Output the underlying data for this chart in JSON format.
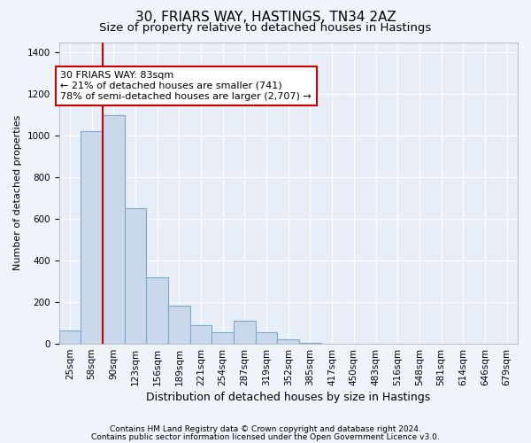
{
  "title1": "30, FRIARS WAY, HASTINGS, TN34 2AZ",
  "title2": "Size of property relative to detached houses in Hastings",
  "xlabel": "Distribution of detached houses by size in Hastings",
  "ylabel": "Number of detached properties",
  "bin_labels": [
    "25sqm",
    "58sqm",
    "90sqm",
    "123sqm",
    "156sqm",
    "189sqm",
    "221sqm",
    "254sqm",
    "287sqm",
    "319sqm",
    "352sqm",
    "385sqm",
    "417sqm",
    "450sqm",
    "483sqm",
    "516sqm",
    "548sqm",
    "581sqm",
    "614sqm",
    "646sqm",
    "679sqm"
  ],
  "bar_values": [
    65,
    1020,
    1100,
    650,
    320,
    185,
    90,
    55,
    110,
    55,
    20,
    5,
    0,
    0,
    0,
    0,
    0,
    0,
    0,
    0,
    0
  ],
  "bar_color": "#c9d9eb",
  "bar_edgecolor": "#7aa8cc",
  "bar_linewidth": 0.8,
  "vline_color": "#cc0000",
  "vline_linewidth": 1.5,
  "annotation_text": "30 FRIARS WAY: 83sqm\n← 21% of detached houses are smaller (741)\n78% of semi-detached houses are larger (2,707) →",
  "annotation_box_edgecolor": "#cc0000",
  "annotation_box_facecolor": "#ffffff",
  "ylim": [
    0,
    1450
  ],
  "yticks": [
    0,
    200,
    400,
    600,
    800,
    1000,
    1200,
    1400
  ],
  "footer1": "Contains HM Land Registry data © Crown copyright and database right 2024.",
  "footer2": "Contains public sector information licensed under the Open Government Licence v3.0.",
  "bg_color": "#f0f4fa",
  "plot_bg_color": "#e8eef8",
  "grid_color": "#ffffff",
  "title1_fontsize": 11,
  "title2_fontsize": 9.5,
  "xlabel_fontsize": 9,
  "ylabel_fontsize": 8,
  "tick_fontsize": 7.5,
  "annotation_fontsize": 8,
  "footer_fontsize": 6.5
}
